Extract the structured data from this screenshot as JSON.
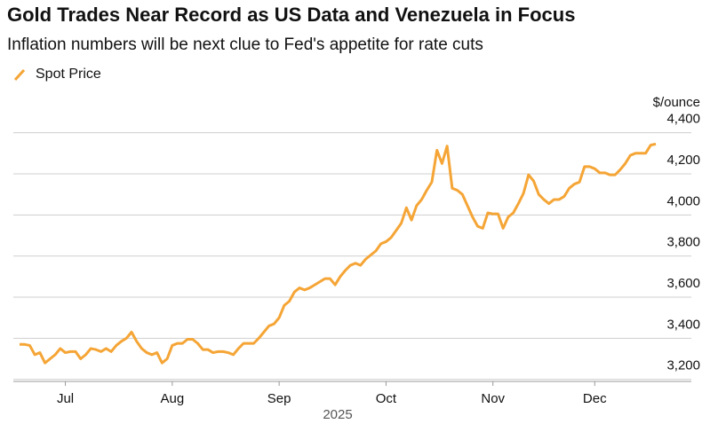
{
  "chart_data": {
    "type": "line",
    "title": "Gold Trades Near Record as US Data and Venezuela in Focus",
    "subtitle": "Inflation numbers will be next clue to Fed's appetite for rate cuts",
    "ylabel": "$/ounce",
    "xlabel": "2025",
    "categories": [
      null,
      null,
      null,
      null,
      null,
      null,
      null,
      null,
      null,
      "Jul",
      null,
      null,
      null,
      null,
      null,
      null,
      null,
      null,
      null,
      null,
      null,
      null,
      null,
      null,
      null,
      null,
      null,
      null,
      null,
      null,
      "Aug",
      null,
      null,
      null,
      null,
      null,
      null,
      null,
      null,
      null,
      null,
      null,
      null,
      null,
      null,
      null,
      null,
      null,
      null,
      null,
      null,
      "Sep",
      null,
      null,
      null,
      null,
      null,
      null,
      null,
      null,
      null,
      null,
      null,
      null,
      null,
      null,
      null,
      null,
      null,
      null,
      null,
      null,
      "Oct",
      null,
      null,
      null,
      null,
      null,
      null,
      null,
      null,
      null,
      null,
      null,
      null,
      null,
      null,
      null,
      null,
      null,
      null,
      null,
      null,
      "Nov",
      null,
      null,
      null,
      null,
      null,
      null,
      null,
      null,
      null,
      null,
      null,
      null,
      null,
      null,
      null,
      null,
      null,
      null,
      null,
      "Dec",
      null,
      null,
      null,
      null,
      null,
      null,
      null,
      null,
      null,
      null,
      null,
      null
    ],
    "series": [
      {
        "name": "Spot Price",
        "color": "#f5a536",
        "values": [
          3370,
          3370,
          3365,
          3320,
          3330,
          3280,
          3300,
          3320,
          3350,
          3330,
          3335,
          3335,
          3300,
          3320,
          3350,
          3345,
          3335,
          3350,
          3335,
          3365,
          3385,
          3400,
          3430,
          3385,
          3350,
          3330,
          3320,
          3330,
          3280,
          3300,
          3365,
          3375,
          3375,
          3395,
          3395,
          3375,
          3345,
          3345,
          3330,
          3335,
          3335,
          3330,
          3320,
          3350,
          3375,
          3375,
          3375,
          3400,
          3430,
          3460,
          3470,
          3500,
          3560,
          3580,
          3625,
          3645,
          3635,
          3645,
          3660,
          3675,
          3690,
          3690,
          3660,
          3700,
          3730,
          3755,
          3765,
          3755,
          3785,
          3805,
          3825,
          3860,
          3870,
          3890,
          3925,
          3960,
          4035,
          3975,
          4045,
          4075,
          4120,
          4160,
          4315,
          4250,
          4335,
          4130,
          4120,
          4100,
          4045,
          3990,
          3945,
          3935,
          4010,
          4005,
          4005,
          3935,
          3990,
          4010,
          4055,
          4105,
          4195,
          4165,
          4100,
          4075,
          4055,
          4075,
          4075,
          4090,
          4130,
          4150,
          4160,
          4235,
          4235,
          4225,
          4205,
          4205,
          4195,
          4195,
          4220,
          4250,
          4290,
          4300,
          4300,
          4300,
          4340,
          4345
        ]
      }
    ],
    "ylim": [
      3190,
      4420
    ],
    "yticks": [
      {
        "value": 3200,
        "label": "3,200"
      },
      {
        "value": 3400,
        "label": "3,400"
      },
      {
        "value": 3600,
        "label": "3,600"
      },
      {
        "value": 3800,
        "label": "3,800"
      },
      {
        "value": 4000,
        "label": "4,000"
      },
      {
        "value": 4200,
        "label": "4,200"
      },
      {
        "value": 4400,
        "label": "4,400"
      }
    ],
    "grid": true,
    "legend": "top-left"
  }
}
